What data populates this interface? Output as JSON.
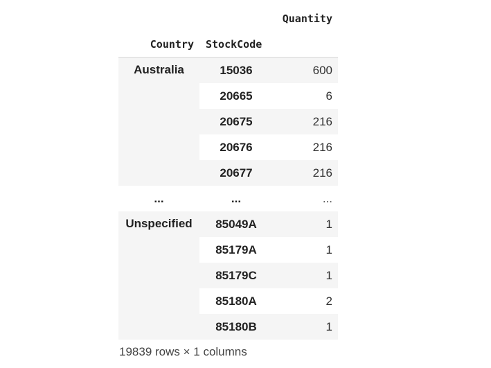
{
  "table": {
    "columns": {
      "value_header": "Quantity",
      "index_headers": [
        "Country",
        "StockCode"
      ]
    },
    "groups": [
      {
        "country": "Australia",
        "rows": [
          {
            "stock_code": "15036",
            "quantity": "600"
          },
          {
            "stock_code": "20665",
            "quantity": "6"
          },
          {
            "stock_code": "20675",
            "quantity": "216"
          },
          {
            "stock_code": "20676",
            "quantity": "216"
          },
          {
            "stock_code": "20677",
            "quantity": "216"
          }
        ]
      },
      {
        "country": "Unspecified",
        "rows": [
          {
            "stock_code": "85049A",
            "quantity": "1"
          },
          {
            "stock_code": "85179A",
            "quantity": "1"
          },
          {
            "stock_code": "85179C",
            "quantity": "1"
          },
          {
            "stock_code": "85180A",
            "quantity": "2"
          },
          {
            "stock_code": "85180B",
            "quantity": "1"
          }
        ]
      }
    ],
    "ellipsis": {
      "country": "...",
      "stock_code": "...",
      "quantity": "..."
    }
  },
  "footer": {
    "summary": "19839 rows × 1 columns"
  }
}
